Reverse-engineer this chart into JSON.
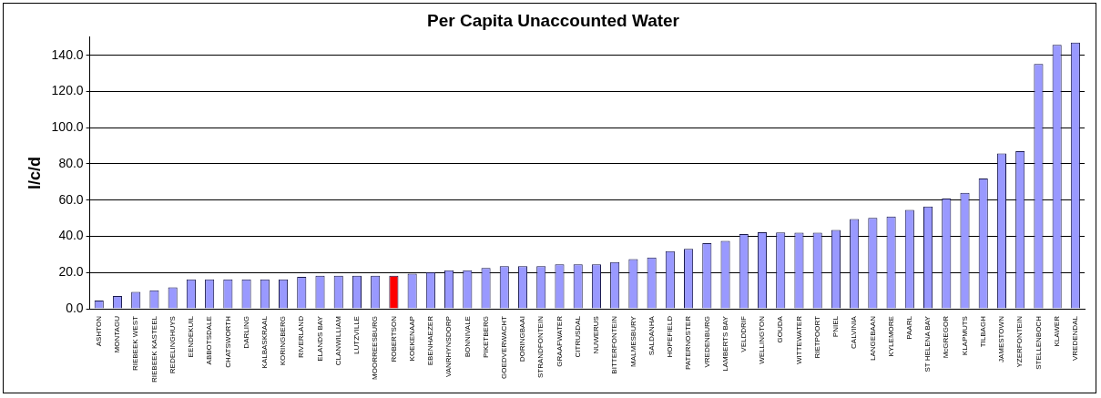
{
  "chart_data": {
    "type": "bar",
    "title": "Per Capita Unaccounted Water",
    "ylabel": "l/c/d",
    "categories": [
      "ASHTON",
      "MONTAGU",
      "RIEBEEK WEST",
      "RIEBEEK KASTEEL",
      "REDELINGHUYS",
      "EENDEKUIL",
      "ABBOTSDALE",
      "CHATSWORTH",
      "DARLING",
      "KALBASKRAAL",
      "KORINGBERG",
      "RIVERLAND",
      "ELANDS BAY",
      "CLANWILLIAM",
      "LUTZVILLE",
      "MOORREESBURG",
      "ROBERTSON",
      "KOEKENAAP",
      "EBENHAEZER",
      "VANRHYNSDORP",
      "BONNIVALE",
      "PIKETBERG",
      "GOEDVERWACHT",
      "DORINGBAAI",
      "STRANDFONTEIN",
      "GRAAFWATER",
      "CITRUSDAL",
      "NUWERUS",
      "BITTERFONTEIN",
      "MALMESBURY",
      "SALDANHA",
      "HOPEFIELD",
      "PATERNOSTER",
      "VREDENBURG",
      "LAMBERTS BAY",
      "VELDDRIF",
      "WELLINGTON",
      "GOUDA",
      "WITTEWATER",
      "RIETPOORT",
      "PNIEL",
      "CALVINIA",
      "LANGEBAAN",
      "KYLEMORE",
      "PAARL",
      "ST HELENA BAY",
      "McGREGOR",
      "KLAPMUTS",
      "TILBAGH",
      "JAMESTOWN",
      "YZERFONTEIN",
      "STELLENBOCH",
      "KLAWER",
      "VREDENDAL"
    ],
    "values": [
      4.6,
      7.1,
      9.4,
      10.2,
      11.9,
      16.3,
      16.3,
      16.3,
      16.3,
      16.3,
      16.3,
      17.7,
      18.3,
      18.3,
      18.3,
      18.3,
      18.3,
      19.4,
      20.2,
      21.3,
      21.3,
      22.5,
      23.5,
      23.5,
      23.5,
      24.6,
      24.6,
      24.6,
      25.8,
      27.5,
      28.3,
      31.9,
      33.1,
      36.2,
      37.5,
      41.3,
      42.3,
      42.2,
      42,
      42,
      43.5,
      49.6,
      50.2,
      51,
      54.6,
      56.5,
      60.9,
      64,
      72,
      85.8,
      87,
      135.2,
      145.8,
      147
    ],
    "colors": [
      "#9999ff",
      "#9999ff",
      "#9999ff",
      "#9999ff",
      "#9999ff",
      "#9999ff",
      "#9999ff",
      "#9999ff",
      "#9999ff",
      "#9999ff",
      "#9999ff",
      "#9999ff",
      "#9999ff",
      "#9999ff",
      "#9999ff",
      "#9999ff",
      "#ff0000",
      "#9999ff",
      "#9999ff",
      "#9999ff",
      "#9999ff",
      "#9999ff",
      "#9999ff",
      "#9999ff",
      "#9999ff",
      "#9999ff",
      "#9999ff",
      "#9999ff",
      "#9999ff",
      "#9999ff",
      "#9999ff",
      "#9999ff",
      "#9999ff",
      "#9999ff",
      "#9999ff",
      "#9999ff",
      "#9999ff",
      "#9999ff",
      "#9999ff",
      "#9999ff",
      "#9999ff",
      "#9999ff",
      "#9999ff",
      "#9999ff",
      "#9999ff",
      "#9999ff",
      "#9999ff",
      "#9999ff",
      "#9999ff",
      "#9999ff",
      "#9999ff",
      "#9999ff",
      "#9999ff",
      "#9999ff"
    ],
    "ylim": [
      0,
      150
    ],
    "yticks": [
      {
        "value": 0,
        "label": "0.0"
      },
      {
        "value": 20,
        "label": "20.0"
      },
      {
        "value": 40,
        "label": "40.0"
      },
      {
        "value": 60,
        "label": "60.0"
      },
      {
        "value": 80,
        "label": "80.0"
      },
      {
        "value": 100,
        "label": "100.0"
      },
      {
        "value": 120,
        "label": "120.0"
      },
      {
        "value": 140,
        "label": "140.0"
      }
    ],
    "grid": "y",
    "legend": false
  }
}
